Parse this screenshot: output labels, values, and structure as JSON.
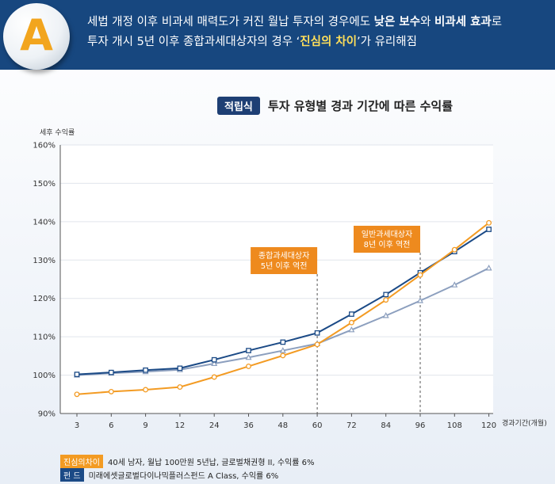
{
  "header": {
    "badge_letter": "A",
    "line1_a": "세법 개정 이후 비과세 매력도가 커진 월납 투자의 경우에도 ",
    "line1_b": "낮은 보수",
    "line1_c": "와 ",
    "line1_d": "비과세 효과",
    "line1_e": "로",
    "line2_a": "투자 개시 5년 이후 종합과세대상자의 경우 ‘",
    "line2_b": "진심의 차이",
    "line2_c": "’가 유리해짐"
  },
  "title_tag": "적립식",
  "chart_data": {
    "type": "line",
    "title": "투자 유형별 경과 기간에 따른 수익률",
    "ylabel": "세후 수익률",
    "xlabel": "경과기간(개월)",
    "categories": [
      "3",
      "6",
      "9",
      "12",
      "24",
      "36",
      "48",
      "60",
      "72",
      "84",
      "96",
      "108",
      "120"
    ],
    "ylim": [
      90,
      160
    ],
    "yticks": [
      "90%",
      "100%",
      "110%",
      "120%",
      "130%",
      "140%",
      "150%",
      "160%"
    ],
    "grid": true,
    "series": [
      {
        "color": "#f39b23",
        "marker": "circle",
        "values": [
          95.0,
          95.7,
          96.2,
          96.9,
          99.5,
          102.3,
          105.1,
          108.0,
          113.7,
          119.6,
          126.1,
          132.7,
          139.7
        ]
      },
      {
        "color": "#1b4a86",
        "marker": "square",
        "values": [
          100.2,
          100.7,
          101.3,
          101.8,
          104.0,
          106.4,
          108.6,
          111.0,
          115.9,
          121.0,
          126.7,
          132.2,
          138.0
        ]
      },
      {
        "color": "#8c9fbe",
        "marker": "triangle",
        "values": [
          100.0,
          100.5,
          100.9,
          101.4,
          103.0,
          104.6,
          106.4,
          108.2,
          111.8,
          115.5,
          119.4,
          123.5,
          127.9
        ]
      }
    ],
    "annotations": [
      {
        "text1": "종합과세대상자",
        "text2": "5년 이후 역전",
        "x": "60"
      },
      {
        "text1": "일반과세대상자",
        "text2": "8년 이후 역전",
        "x": "96"
      }
    ]
  },
  "legend": [
    {
      "label": "진심의차이",
      "color": "#f39b23",
      "text": "40세 남자, 월납 100만원 5년납, 글로벌채권형 II, 수익률 6%"
    },
    {
      "label": "펀   드",
      "color": "#1b4a86",
      "text": "미래에셋글로벌다이나믹플러스펀드 A Class, 수익률 6%"
    }
  ]
}
